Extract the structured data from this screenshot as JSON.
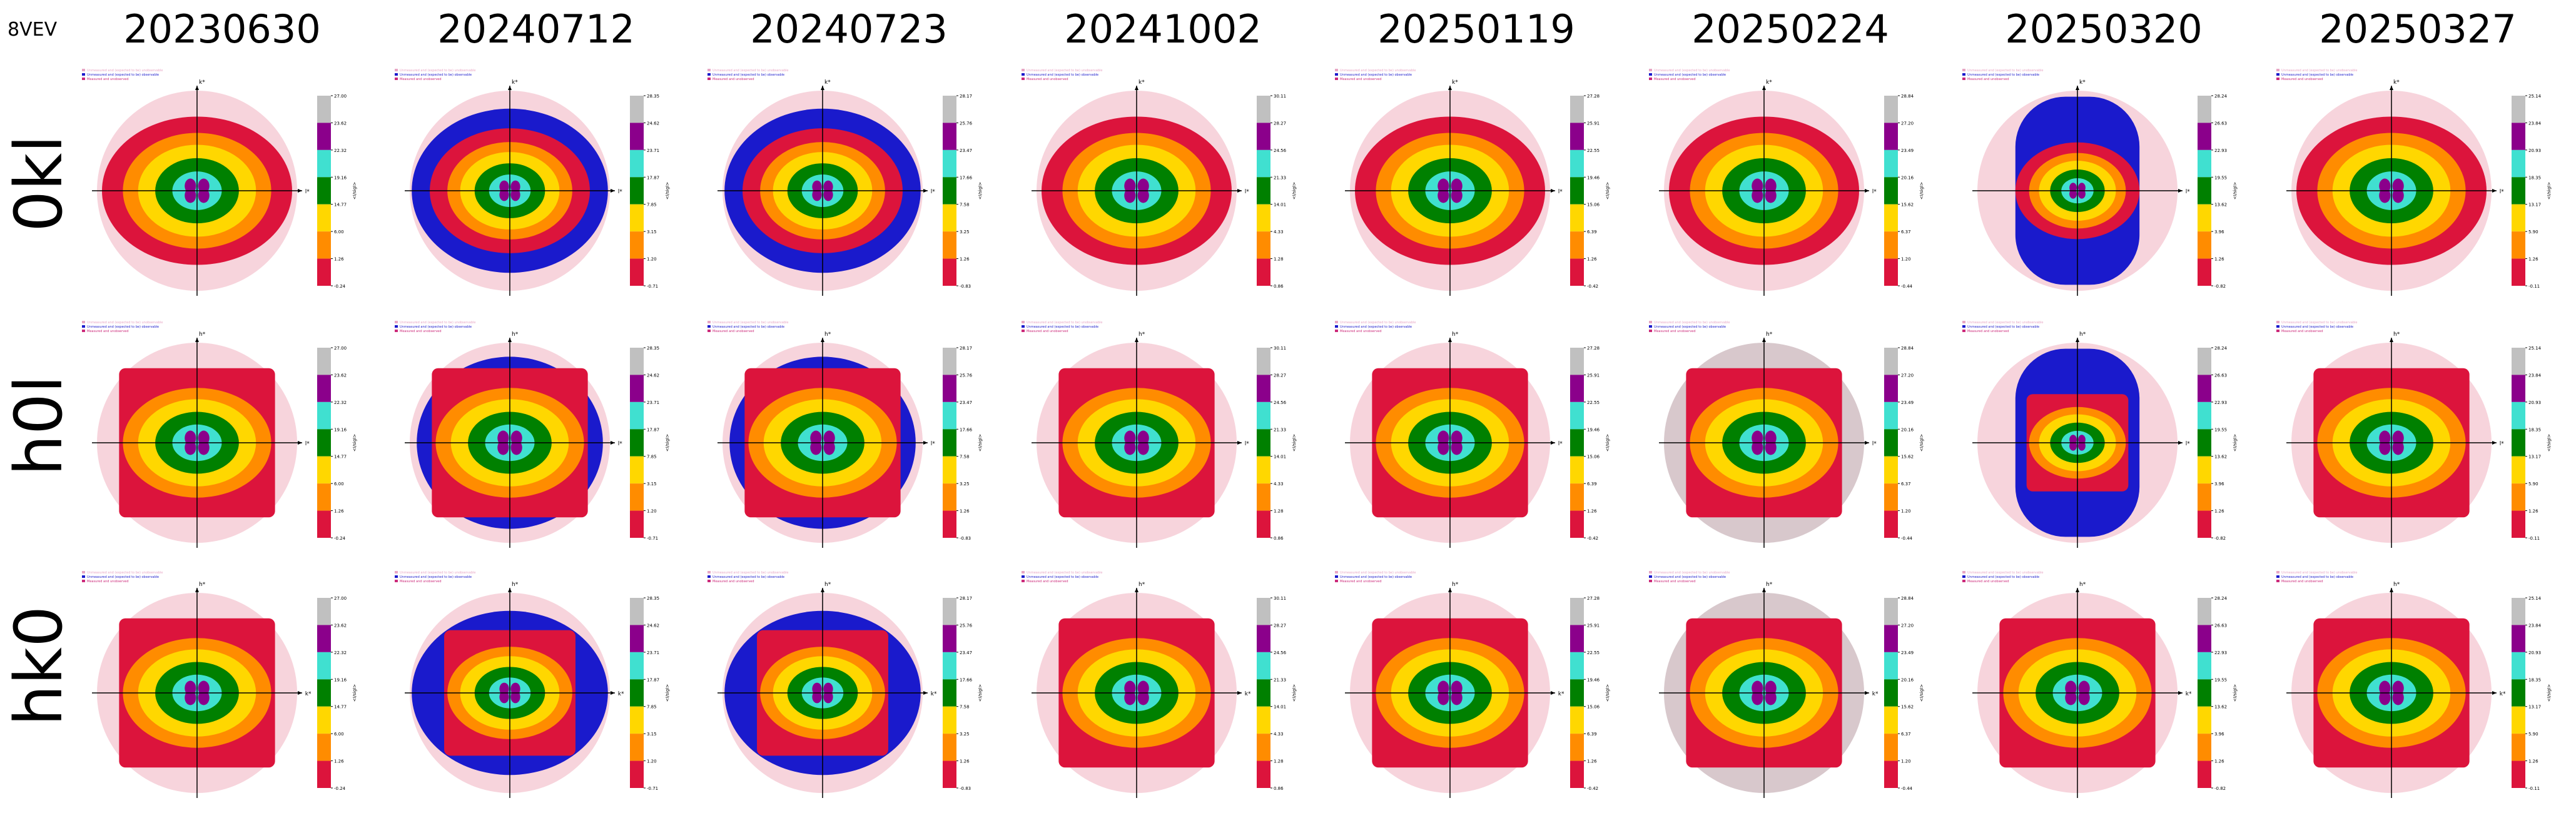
{
  "figure": {
    "pdb_id": "8VEV",
    "column_titles": [
      "20230630",
      "20240712",
      "20240723",
      "20241002",
      "20250119",
      "20250224",
      "20250320",
      "20250327"
    ],
    "row_labels": [
      "0kl",
      "h0l",
      "hk0"
    ],
    "legend_entries": [
      "Unmeasured and (expected to be) unobservable",
      "Unmeasured and (expected to be) observable",
      "Measured and unobserved"
    ],
    "legend_colors": [
      "#e8a6c4",
      "#1a1acc",
      "#cc2a7a"
    ],
    "colorbar_label": "<I/sigI>",
    "colorbar_colors": [
      "#dc143c",
      "#ff8c00",
      "#ffd700",
      "#008000",
      "#40e0d0",
      "#8b008b",
      "#c0c0c0"
    ],
    "colors": {
      "outer_disc": "#f7d4dc",
      "blue_region": "#1a1acc",
      "outer_disc_grey": "#d8c8cc"
    }
  },
  "chart_data": {
    "type": "heatmap",
    "description_of_layout": "3 rows (0kl, h0l, hk0) x 8 columns (dates) of reciprocal-space zone plots with contour bands of <I/sigI>",
    "zone_axes": {
      "0kl": [
        "k*",
        "l*"
      ],
      "h0l": [
        "h*",
        "l*"
      ],
      "hk0": [
        "h*",
        "k*"
      ]
    },
    "colorbar_ticks": [
      [
        "27.00",
        "23.62",
        "22.32",
        "19.16",
        "14.77",
        "6.00",
        "1.26",
        "-0.24"
      ],
      [
        "28.35",
        "24.62",
        "23.71",
        "17.87",
        "7.85",
        "3.15",
        "1.20",
        "-0.71"
      ],
      [
        "28.17",
        "25.76",
        "23.47",
        "17.66",
        "7.58",
        "3.25",
        "1.26",
        "-0.83"
      ],
      [
        "30.11",
        "28.27",
        "24.56",
        "21.33",
        "14.01",
        "4.33",
        "1.28",
        "0.86"
      ],
      [
        "27.28",
        "25.91",
        "22.55",
        "19.46",
        "15.06",
        "6.39",
        "1.26",
        "-0.42"
      ],
      [
        "28.84",
        "27.20",
        "23.49",
        "20.16",
        "15.62",
        "6.37",
        "1.20",
        "-0.44"
      ],
      [
        "28.24",
        "26.63",
        "22.93",
        "19.55",
        "13.62",
        "3.96",
        "1.26",
        "-0.82"
      ],
      [
        "25.14",
        "23.84",
        "20.93",
        "18.35",
        "13.17",
        "5.90",
        "1.26",
        "-0.11"
      ]
    ]
  }
}
